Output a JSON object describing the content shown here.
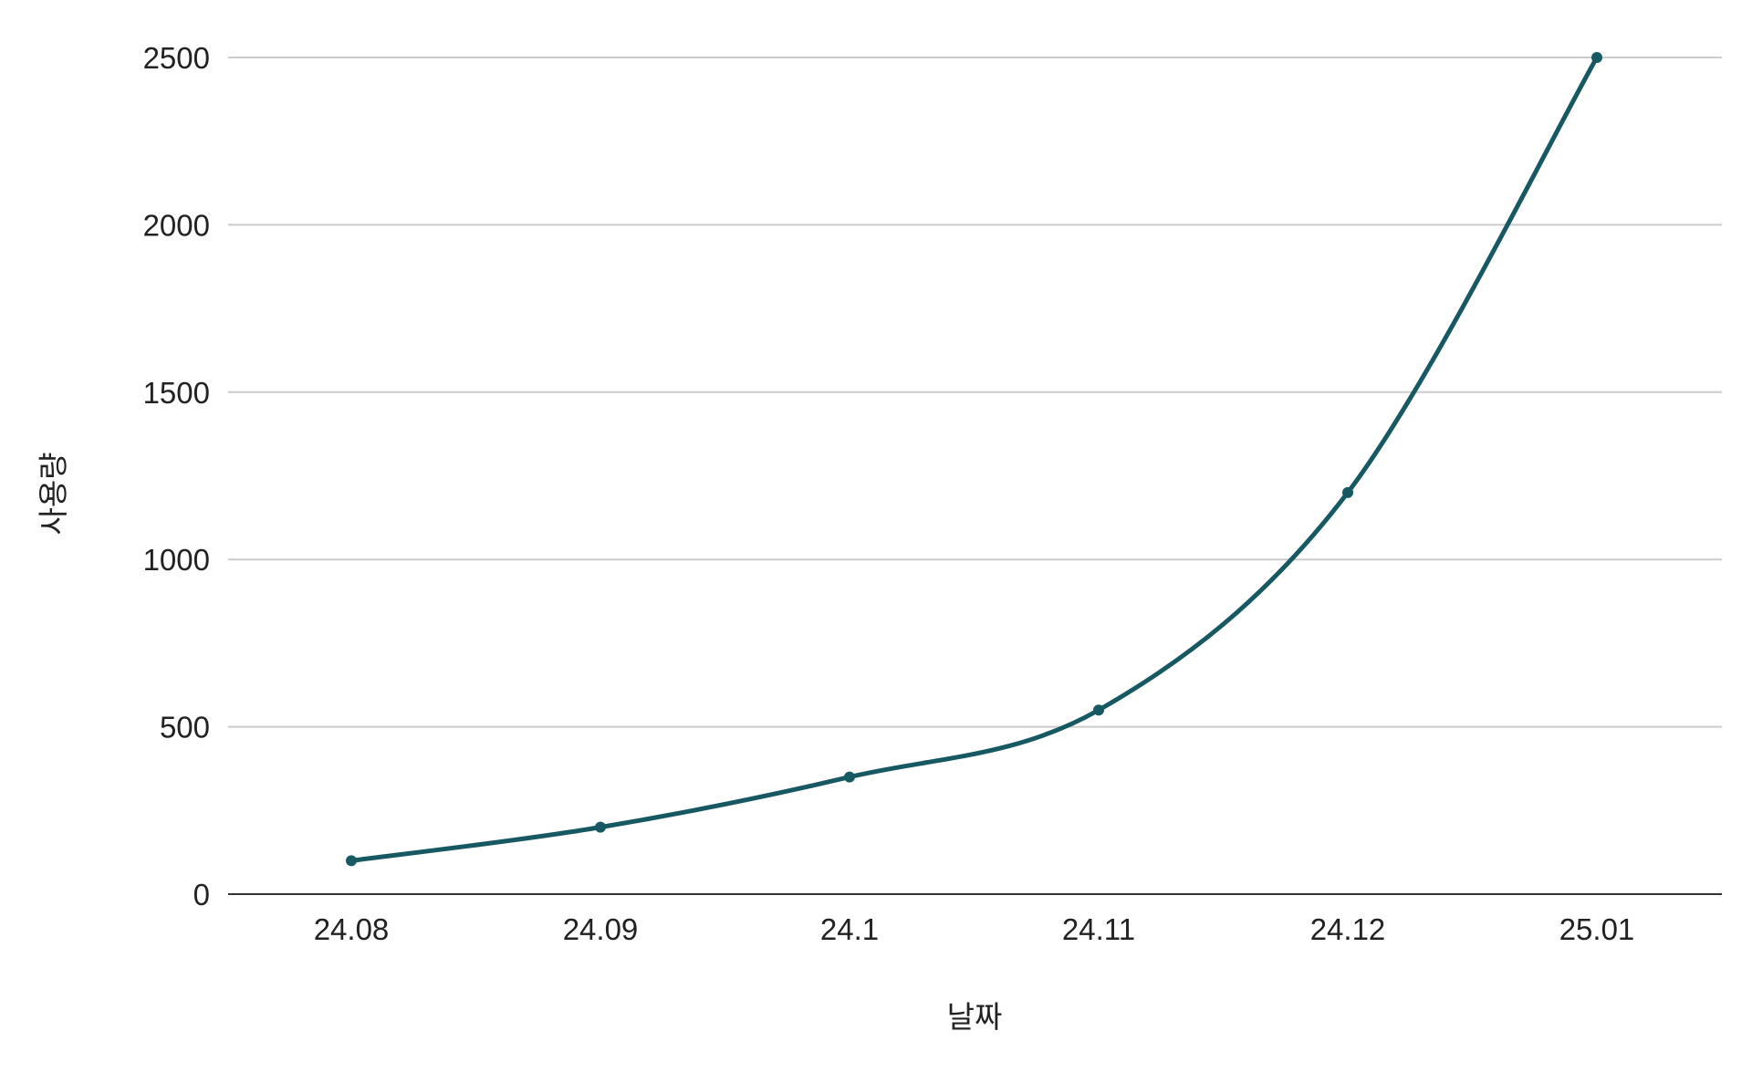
{
  "chart_data": {
    "type": "line",
    "title": "",
    "xlabel": "날짜",
    "ylabel": "사용량",
    "categories": [
      "24.08",
      "24.09",
      "24.1",
      "24.11",
      "24.12",
      "25.01"
    ],
    "series": [
      {
        "values": [
          100,
          200,
          350,
          550,
          1200,
          2500
        ]
      }
    ],
    "ylim": [
      0,
      2500
    ],
    "yticks": [
      0,
      500,
      1000,
      1500,
      2000,
      2500
    ],
    "grid": true,
    "smooth": true,
    "line_color": "#175962",
    "gridline_color": "#cccccc"
  }
}
